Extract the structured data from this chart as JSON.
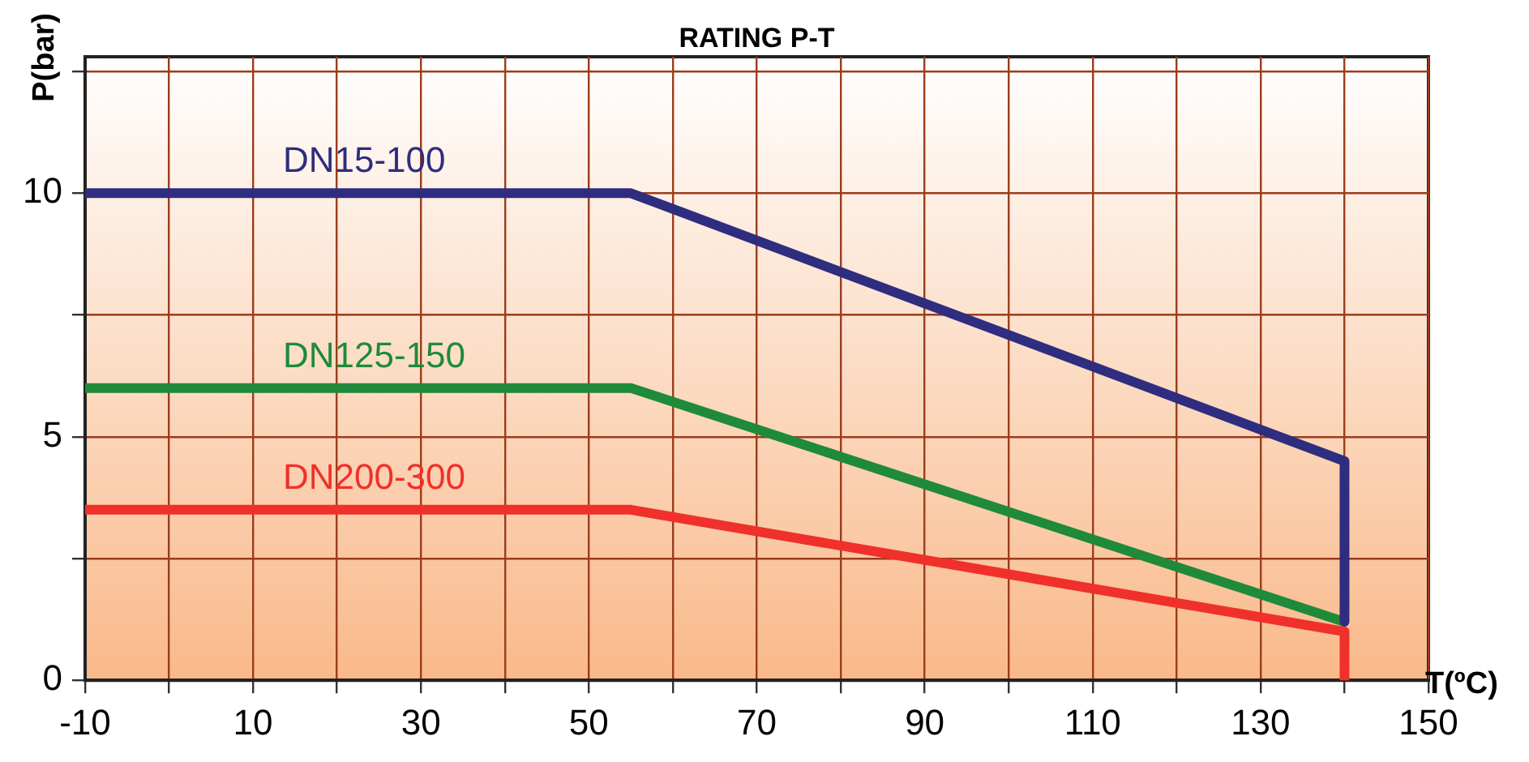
{
  "chart_data": {
    "type": "line",
    "title": "RATING P-T",
    "xlabel": "T(ºC)",
    "ylabel": "P(bar)",
    "xlim": [
      -10,
      150
    ],
    "ylim": [
      0,
      12.8
    ],
    "xticks": [
      -10,
      {
        "value": 0,
        "label": null
      },
      10,
      {
        "value": 20,
        "label": null
      },
      30,
      {
        "value": 40,
        "label": null
      },
      50,
      {
        "value": 60,
        "label": null
      },
      70,
      {
        "value": 80,
        "label": null
      },
      90,
      {
        "value": 100,
        "label": null
      },
      110,
      {
        "value": 120,
        "label": null
      },
      130,
      {
        "value": 140,
        "label": null
      },
      150
    ],
    "yticks": [
      0,
      {
        "value": 2.5,
        "label": null
      },
      5,
      {
        "value": 7.5,
        "label": null
      },
      10,
      {
        "value": 12.5,
        "label": null
      }
    ],
    "grid": true,
    "legend": false,
    "marker": "none",
    "line_style": "solid",
    "series": [
      {
        "name": "DN15-100",
        "color": "#2e2d7f",
        "x": [
          -10,
          55,
          140,
          140
        ],
        "values": [
          10,
          10,
          4.5,
          1.2
        ]
      },
      {
        "name": "DN125-150",
        "color": "#1f8a3a",
        "x": [
          -10,
          55,
          140
        ],
        "values": [
          6,
          6,
          1.2
        ]
      },
      {
        "name": "DN200-300",
        "color": "#f0302a",
        "x": [
          -10,
          55,
          140,
          140
        ],
        "values": [
          3.5,
          3.5,
          1,
          0
        ]
      }
    ]
  }
}
